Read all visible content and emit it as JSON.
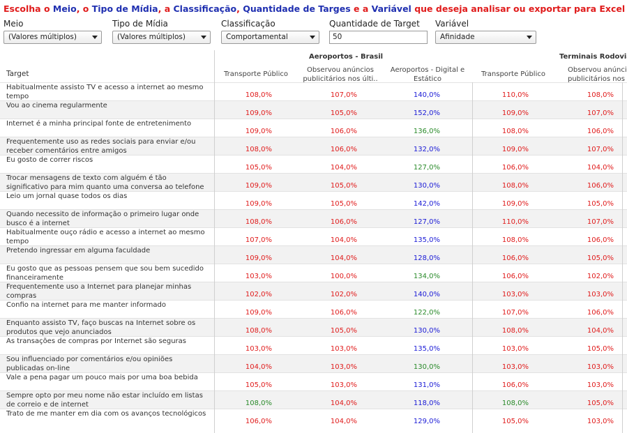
{
  "heading": [
    {
      "text": "Escolha o ",
      "color": "red"
    },
    {
      "text": "Meio",
      "color": "blue"
    },
    {
      "text": ", o ",
      "color": "red"
    },
    {
      "text": "Tipo de Mídia",
      "color": "blue"
    },
    {
      "text": ", a ",
      "color": "red"
    },
    {
      "text": "Classificação",
      "color": "blue"
    },
    {
      "text": ", ",
      "color": "red"
    },
    {
      "text": "Quantidade de Targes",
      "color": "blue"
    },
    {
      "text": " e a ",
      "color": "red"
    },
    {
      "text": "Variável",
      "color": "blue"
    },
    {
      "text": " que deseja analisar ou exportar para Excel",
      "color": "red"
    }
  ],
  "filters": {
    "meio": {
      "label": "Meio",
      "value": "(Valores múltiplos)"
    },
    "tipo_midia": {
      "label": "Tipo de Mídia",
      "value": "(Valores múltiplos)"
    },
    "classificacao": {
      "label": "Classificação",
      "value": "Comportamental"
    },
    "quantidade": {
      "label": "Quantidade de Target",
      "value": "50"
    },
    "variavel": {
      "label": "Variável",
      "value": "Afinidade"
    }
  },
  "table": {
    "target_header": "Target",
    "groups": [
      "Aeroportos - Brasil",
      "Terminais Rodoviá"
    ],
    "columns": [
      [
        "Transporte Público"
      ],
      [
        "Observou anúncios",
        "publicitários nos últi.."
      ],
      [
        "Aeroportos - Digital e",
        "Estático"
      ],
      [
        "Transporte Público"
      ],
      [
        "Observou anúnci",
        "publicitários nos ú"
      ]
    ],
    "rows": [
      {
        "label": "Habitualmente assisto TV e acesso a internet ao mesmo tempo",
        "values": [
          "108,0%",
          "107,0%",
          "140,0%",
          "110,0%",
          "108,0%"
        ]
      },
      {
        "label": "Vou ao cinema regularmente",
        "values": [
          "109,0%",
          "105,0%",
          "152,0%",
          "109,0%",
          "107,0%"
        ]
      },
      {
        "label": "Internet é a minha principal fonte de entretenimento",
        "values": [
          "109,0%",
          "106,0%",
          "136,0%",
          "108,0%",
          "106,0%"
        ]
      },
      {
        "label": "Frequentemente uso as redes sociais para enviar e/ou receber comentários entre amigos",
        "values": [
          "108,0%",
          "106,0%",
          "132,0%",
          "109,0%",
          "107,0%"
        ]
      },
      {
        "label": "Eu gosto de correr riscos",
        "values": [
          "105,0%",
          "104,0%",
          "127,0%",
          "106,0%",
          "104,0%"
        ]
      },
      {
        "label": "Trocar mensagens de texto com alguém é tão significativo para mim quanto uma conversa ao telefone",
        "values": [
          "109,0%",
          "105,0%",
          "130,0%",
          "108,0%",
          "106,0%"
        ]
      },
      {
        "label": "Leio um jornal quase todos os dias",
        "values": [
          "109,0%",
          "105,0%",
          "142,0%",
          "109,0%",
          "105,0%"
        ]
      },
      {
        "label": "Quando necessito de informação o primeiro lugar onde busco é a internet",
        "values": [
          "108,0%",
          "106,0%",
          "127,0%",
          "110,0%",
          "107,0%"
        ]
      },
      {
        "label": "Habitualmente ouço rádio e acesso a internet ao mesmo tempo",
        "values": [
          "107,0%",
          "104,0%",
          "135,0%",
          "108,0%",
          "106,0%"
        ]
      },
      {
        "label": "Pretendo ingressar em alguma faculdade",
        "values": [
          "109,0%",
          "104,0%",
          "128,0%",
          "106,0%",
          "105,0%"
        ]
      },
      {
        "label": "Eu gosto que as pessoas pensem que sou bem sucedido financeiramente",
        "values": [
          "103,0%",
          "100,0%",
          "134,0%",
          "106,0%",
          "102,0%"
        ]
      },
      {
        "label": "Frequentemente uso a Internet para planejar minhas compras",
        "values": [
          "102,0%",
          "102,0%",
          "140,0%",
          "103,0%",
          "103,0%"
        ]
      },
      {
        "label": "Confio na internet para me manter informado",
        "values": [
          "109,0%",
          "106,0%",
          "122,0%",
          "107,0%",
          "106,0%"
        ]
      },
      {
        "label": "Enquanto assisto TV, faço buscas na Internet sobre os produtos que vejo anunciados",
        "values": [
          "108,0%",
          "105,0%",
          "130,0%",
          "108,0%",
          "104,0%"
        ]
      },
      {
        "label": "As transações de compras por Internet são seguras",
        "values": [
          "103,0%",
          "103,0%",
          "135,0%",
          "103,0%",
          "105,0%"
        ]
      },
      {
        "label": "Sou influenciado por comentários e/ou opiniões publicadas on-line",
        "values": [
          "104,0%",
          "103,0%",
          "130,0%",
          "103,0%",
          "103,0%"
        ]
      },
      {
        "label": "Vale a pena pagar um pouco mais por uma boa bebida",
        "values": [
          "105,0%",
          "103,0%",
          "131,0%",
          "106,0%",
          "103,0%"
        ]
      },
      {
        "label": "Sempre opto por meu nome não estar incluído em listas de correio e de internet",
        "values": [
          "108,0%",
          "104,0%",
          "118,0%",
          "108,0%",
          "105,0%"
        ]
      },
      {
        "label": "Trato de me manter em dia com os avanços tecnológicos",
        "values": [
          "106,0%",
          "104,0%",
          "129,0%",
          "105,0%",
          "103,0%"
        ]
      }
    ],
    "value_colors": [
      [
        "red",
        "red",
        "blue",
        "red",
        "red"
      ],
      [
        "red",
        "red",
        "blue",
        "red",
        "red"
      ],
      [
        "red",
        "red",
        "green",
        "red",
        "red"
      ],
      [
        "red",
        "red",
        "blue",
        "red",
        "red"
      ],
      [
        "red",
        "red",
        "green",
        "red",
        "red"
      ],
      [
        "red",
        "red",
        "blue",
        "red",
        "red"
      ],
      [
        "red",
        "red",
        "blue",
        "red",
        "red"
      ],
      [
        "red",
        "red",
        "blue",
        "red",
        "red"
      ],
      [
        "red",
        "red",
        "blue",
        "red",
        "red"
      ],
      [
        "red",
        "red",
        "blue",
        "red",
        "red"
      ],
      [
        "red",
        "red",
        "green",
        "red",
        "red"
      ],
      [
        "red",
        "red",
        "blue",
        "red",
        "red"
      ],
      [
        "red",
        "red",
        "green",
        "red",
        "red"
      ],
      [
        "red",
        "red",
        "blue",
        "red",
        "red"
      ],
      [
        "red",
        "red",
        "blue",
        "red",
        "red"
      ],
      [
        "red",
        "red",
        "green",
        "red",
        "red"
      ],
      [
        "red",
        "red",
        "blue",
        "red",
        "red"
      ],
      [
        "green",
        "red",
        "blue",
        "green",
        "red"
      ],
      [
        "red",
        "red",
        "blue",
        "red",
        "red"
      ]
    ]
  },
  "colors": {
    "red": "#e01b1b",
    "blue": "#1a1ad6",
    "green": "#2a8a2a"
  }
}
